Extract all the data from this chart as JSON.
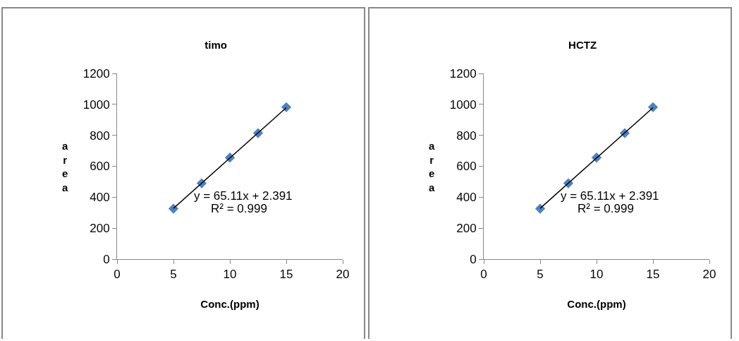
{
  "chart_data": [
    {
      "type": "scatter",
      "title": "timo",
      "xlabel": "Conc.(ppm)",
      "ylabel": "area",
      "xlim": [
        0,
        20
      ],
      "xticks": [
        0,
        5,
        10,
        15,
        20
      ],
      "ylim": [
        0,
        1200
      ],
      "yticks": [
        0,
        200,
        400,
        600,
        800,
        1000,
        1200
      ],
      "grid": false,
      "series": [
        {
          "color": "#4f81bd",
          "marker": "diamond",
          "x": [
            5,
            7.5,
            10,
            12.5,
            15
          ],
          "values": [
            326,
            490,
            656,
            814,
            982
          ]
        },
        {
          "type": "line",
          "color": "#000000",
          "marker": "none",
          "x": [
            5,
            15
          ],
          "values": [
            328,
            979
          ],
          "line_style": "solid"
        }
      ],
      "annotations": [
        "y = 65.11x + 2.391",
        "R² = 0.999"
      ]
    },
    {
      "type": "scatter",
      "title": "HCTZ",
      "xlabel": "Conc.(ppm)",
      "ylabel": "area",
      "xlim": [
        0,
        20
      ],
      "xticks": [
        0,
        5,
        10,
        15,
        20
      ],
      "ylim": [
        0,
        1200
      ],
      "yticks": [
        0,
        200,
        400,
        600,
        800,
        1000,
        1200
      ],
      "grid": false,
      "series": [
        {
          "color": "#4f81bd",
          "marker": "diamond",
          "x": [
            5,
            7.5,
            10,
            12.5,
            15
          ],
          "values": [
            326,
            490,
            656,
            814,
            982
          ]
        },
        {
          "type": "line",
          "color": "#000000",
          "marker": "none",
          "x": [
            5,
            15
          ],
          "values": [
            328,
            979
          ],
          "line_style": "solid"
        }
      ],
      "annotations": [
        "y = 65.11x + 2.391",
        "R² = 0.999"
      ]
    }
  ]
}
